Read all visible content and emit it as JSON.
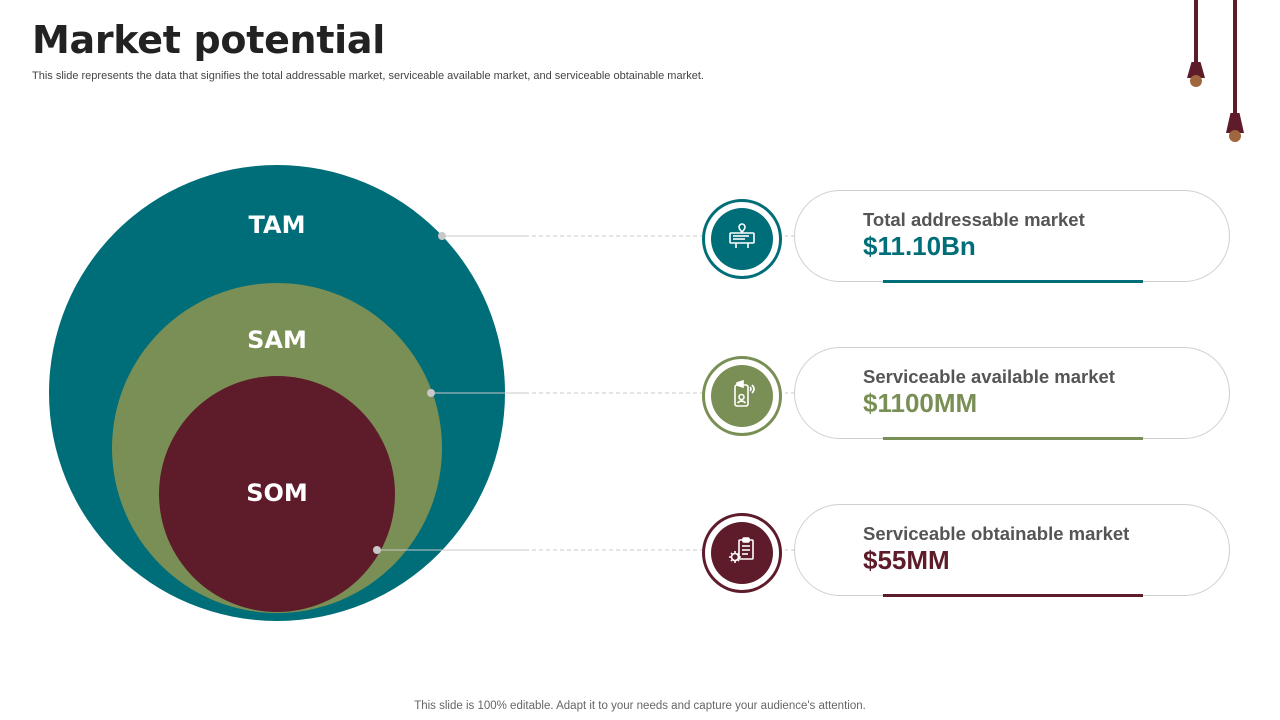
{
  "title": "Market potential",
  "subtitle": "This slide represents the data that signifies the total addressable market, serviceable available market, and serviceable obtainable market.",
  "footer": "This slide is 100% editable. Adapt it to your needs and capture your audience's attention.",
  "colors": {
    "teal": "#006e79",
    "green": "#7a8f55",
    "maroon": "#5e1b2a"
  },
  "venn": {
    "tam_label": "TAM",
    "sam_label": "SAM",
    "som_label": "SOM"
  },
  "items": [
    {
      "icon": "billboard-location-icon",
      "label": "Total addressable market",
      "value": "$11.10Bn",
      "color": "#006e79"
    },
    {
      "icon": "mobile-megaphone-icon",
      "label": "Serviceable available market",
      "value": "$1100MM",
      "color": "#7a8f55"
    },
    {
      "icon": "clipboard-gear-icon",
      "label": "Serviceable obtainable market",
      "value": "$55MM",
      "color": "#5e1b2a"
    }
  ]
}
